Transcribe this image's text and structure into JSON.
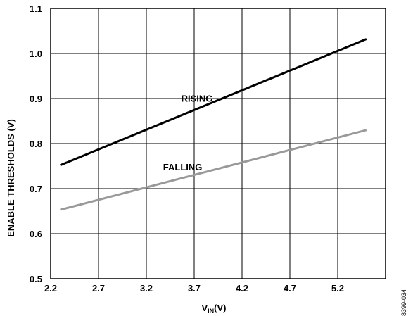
{
  "chart_data": {
    "type": "line",
    "xlabel_main": "V",
    "xlabel_sub": "IN",
    "xlabel_unit": "(V)",
    "ylabel": "ENABLE THRESHOLDS (V)",
    "xlim": [
      2.2,
      5.7
    ],
    "ylim": [
      0.5,
      1.1
    ],
    "x_ticks": [
      2.2,
      2.7,
      3.2,
      3.7,
      4.2,
      4.7,
      5.2
    ],
    "x_tick_labels": [
      "2.2",
      "2.7",
      "3.2",
      "3.7",
      "4.2",
      "4.7",
      "5.2"
    ],
    "y_ticks": [
      0.5,
      0.6,
      0.7,
      0.8,
      0.9,
      1.0,
      1.1
    ],
    "y_tick_labels": [
      "0.5",
      "0.6",
      "0.7",
      "0.8",
      "0.9",
      "1.0",
      "1.1"
    ],
    "grid": true,
    "series": [
      {
        "name": "RISING",
        "color": "#000000",
        "x": [
          2.3,
          5.5
        ],
        "y": [
          0.752,
          1.032
        ]
      },
      {
        "name": "FALLING",
        "color": "#999999",
        "x": [
          2.3,
          5.5
        ],
        "y": [
          0.653,
          0.83
        ]
      }
    ],
    "figure_id": "8399-034"
  }
}
